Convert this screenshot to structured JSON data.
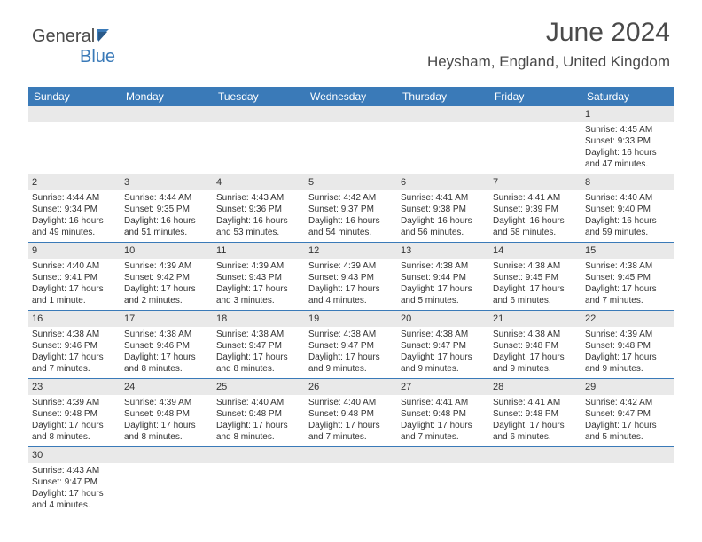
{
  "logo": {
    "part1": "General",
    "part2": "Blue"
  },
  "title": "June 2024",
  "location": "Heysham, England, United Kingdom",
  "colors": {
    "header_bg": "#3a7ab8",
    "header_fg": "#ffffff",
    "daynum_bg": "#e9e9e9",
    "text": "#333333",
    "rule": "#3a7ab8"
  },
  "weekdays": [
    "Sunday",
    "Monday",
    "Tuesday",
    "Wednesday",
    "Thursday",
    "Friday",
    "Saturday"
  ],
  "weeks": [
    {
      "nums": [
        "",
        "",
        "",
        "",
        "",
        "",
        "1"
      ],
      "cells": [
        null,
        null,
        null,
        null,
        null,
        null,
        {
          "rise": "Sunrise: 4:45 AM",
          "set": "Sunset: 9:33 PM",
          "d1": "Daylight: 16 hours",
          "d2": "and 47 minutes."
        }
      ]
    },
    {
      "nums": [
        "2",
        "3",
        "4",
        "5",
        "6",
        "7",
        "8"
      ],
      "cells": [
        {
          "rise": "Sunrise: 4:44 AM",
          "set": "Sunset: 9:34 PM",
          "d1": "Daylight: 16 hours",
          "d2": "and 49 minutes."
        },
        {
          "rise": "Sunrise: 4:44 AM",
          "set": "Sunset: 9:35 PM",
          "d1": "Daylight: 16 hours",
          "d2": "and 51 minutes."
        },
        {
          "rise": "Sunrise: 4:43 AM",
          "set": "Sunset: 9:36 PM",
          "d1": "Daylight: 16 hours",
          "d2": "and 53 minutes."
        },
        {
          "rise": "Sunrise: 4:42 AM",
          "set": "Sunset: 9:37 PM",
          "d1": "Daylight: 16 hours",
          "d2": "and 54 minutes."
        },
        {
          "rise": "Sunrise: 4:41 AM",
          "set": "Sunset: 9:38 PM",
          "d1": "Daylight: 16 hours",
          "d2": "and 56 minutes."
        },
        {
          "rise": "Sunrise: 4:41 AM",
          "set": "Sunset: 9:39 PM",
          "d1": "Daylight: 16 hours",
          "d2": "and 58 minutes."
        },
        {
          "rise": "Sunrise: 4:40 AM",
          "set": "Sunset: 9:40 PM",
          "d1": "Daylight: 16 hours",
          "d2": "and 59 minutes."
        }
      ]
    },
    {
      "nums": [
        "9",
        "10",
        "11",
        "12",
        "13",
        "14",
        "15"
      ],
      "cells": [
        {
          "rise": "Sunrise: 4:40 AM",
          "set": "Sunset: 9:41 PM",
          "d1": "Daylight: 17 hours",
          "d2": "and 1 minute."
        },
        {
          "rise": "Sunrise: 4:39 AM",
          "set": "Sunset: 9:42 PM",
          "d1": "Daylight: 17 hours",
          "d2": "and 2 minutes."
        },
        {
          "rise": "Sunrise: 4:39 AM",
          "set": "Sunset: 9:43 PM",
          "d1": "Daylight: 17 hours",
          "d2": "and 3 minutes."
        },
        {
          "rise": "Sunrise: 4:39 AM",
          "set": "Sunset: 9:43 PM",
          "d1": "Daylight: 17 hours",
          "d2": "and 4 minutes."
        },
        {
          "rise": "Sunrise: 4:38 AM",
          "set": "Sunset: 9:44 PM",
          "d1": "Daylight: 17 hours",
          "d2": "and 5 minutes."
        },
        {
          "rise": "Sunrise: 4:38 AM",
          "set": "Sunset: 9:45 PM",
          "d1": "Daylight: 17 hours",
          "d2": "and 6 minutes."
        },
        {
          "rise": "Sunrise: 4:38 AM",
          "set": "Sunset: 9:45 PM",
          "d1": "Daylight: 17 hours",
          "d2": "and 7 minutes."
        }
      ]
    },
    {
      "nums": [
        "16",
        "17",
        "18",
        "19",
        "20",
        "21",
        "22"
      ],
      "cells": [
        {
          "rise": "Sunrise: 4:38 AM",
          "set": "Sunset: 9:46 PM",
          "d1": "Daylight: 17 hours",
          "d2": "and 7 minutes."
        },
        {
          "rise": "Sunrise: 4:38 AM",
          "set": "Sunset: 9:46 PM",
          "d1": "Daylight: 17 hours",
          "d2": "and 8 minutes."
        },
        {
          "rise": "Sunrise: 4:38 AM",
          "set": "Sunset: 9:47 PM",
          "d1": "Daylight: 17 hours",
          "d2": "and 8 minutes."
        },
        {
          "rise": "Sunrise: 4:38 AM",
          "set": "Sunset: 9:47 PM",
          "d1": "Daylight: 17 hours",
          "d2": "and 9 minutes."
        },
        {
          "rise": "Sunrise: 4:38 AM",
          "set": "Sunset: 9:47 PM",
          "d1": "Daylight: 17 hours",
          "d2": "and 9 minutes."
        },
        {
          "rise": "Sunrise: 4:38 AM",
          "set": "Sunset: 9:48 PM",
          "d1": "Daylight: 17 hours",
          "d2": "and 9 minutes."
        },
        {
          "rise": "Sunrise: 4:39 AM",
          "set": "Sunset: 9:48 PM",
          "d1": "Daylight: 17 hours",
          "d2": "and 9 minutes."
        }
      ]
    },
    {
      "nums": [
        "23",
        "24",
        "25",
        "26",
        "27",
        "28",
        "29"
      ],
      "cells": [
        {
          "rise": "Sunrise: 4:39 AM",
          "set": "Sunset: 9:48 PM",
          "d1": "Daylight: 17 hours",
          "d2": "and 8 minutes."
        },
        {
          "rise": "Sunrise: 4:39 AM",
          "set": "Sunset: 9:48 PM",
          "d1": "Daylight: 17 hours",
          "d2": "and 8 minutes."
        },
        {
          "rise": "Sunrise: 4:40 AM",
          "set": "Sunset: 9:48 PM",
          "d1": "Daylight: 17 hours",
          "d2": "and 8 minutes."
        },
        {
          "rise": "Sunrise: 4:40 AM",
          "set": "Sunset: 9:48 PM",
          "d1": "Daylight: 17 hours",
          "d2": "and 7 minutes."
        },
        {
          "rise": "Sunrise: 4:41 AM",
          "set": "Sunset: 9:48 PM",
          "d1": "Daylight: 17 hours",
          "d2": "and 7 minutes."
        },
        {
          "rise": "Sunrise: 4:41 AM",
          "set": "Sunset: 9:48 PM",
          "d1": "Daylight: 17 hours",
          "d2": "and 6 minutes."
        },
        {
          "rise": "Sunrise: 4:42 AM",
          "set": "Sunset: 9:47 PM",
          "d1": "Daylight: 17 hours",
          "d2": "and 5 minutes."
        }
      ]
    },
    {
      "nums": [
        "30",
        "",
        "",
        "",
        "",
        "",
        ""
      ],
      "cells": [
        {
          "rise": "Sunrise: 4:43 AM",
          "set": "Sunset: 9:47 PM",
          "d1": "Daylight: 17 hours",
          "d2": "and 4 minutes."
        },
        null,
        null,
        null,
        null,
        null,
        null
      ]
    }
  ]
}
